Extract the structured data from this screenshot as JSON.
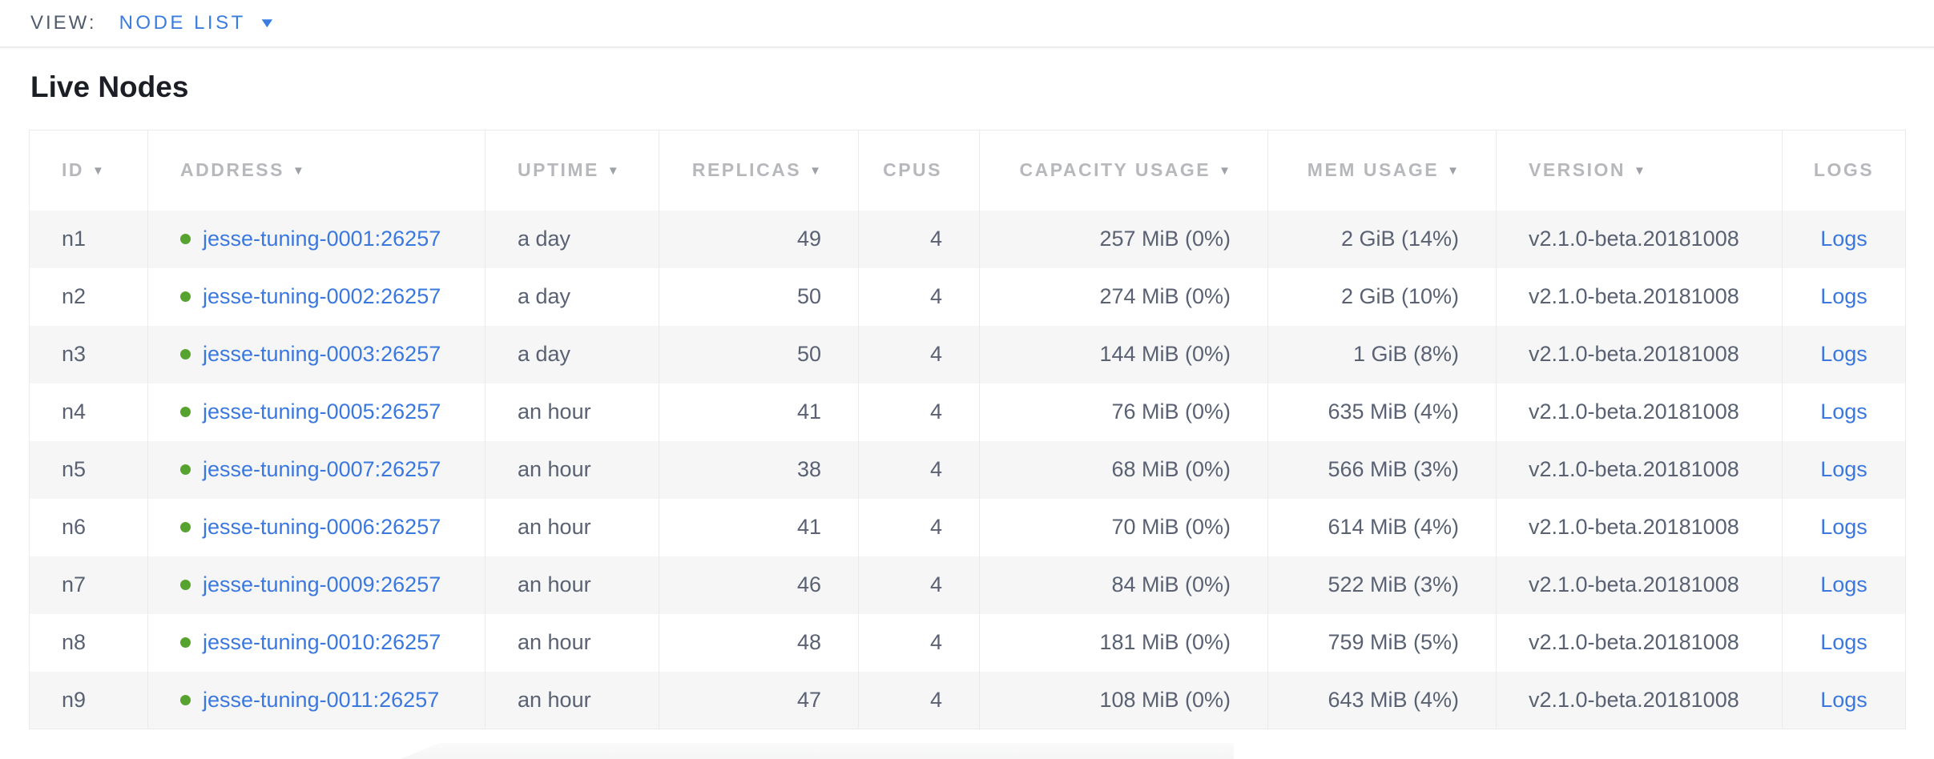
{
  "view_bar": {
    "label": "VIEW:",
    "selected": "NODE LIST",
    "dropdown_icon": "▼"
  },
  "page": {
    "title": "Live Nodes"
  },
  "table": {
    "sort_icon": "▼",
    "columns": [
      {
        "key": "id",
        "label": "ID",
        "sortable": true,
        "align": "left"
      },
      {
        "key": "address",
        "label": "ADDRESS",
        "sortable": true,
        "align": "left"
      },
      {
        "key": "uptime",
        "label": "UPTIME",
        "sortable": true,
        "align": "left"
      },
      {
        "key": "replicas",
        "label": "REPLICAS",
        "sortable": true,
        "align": "right"
      },
      {
        "key": "cpus",
        "label": "CPUS",
        "sortable": false,
        "align": "right"
      },
      {
        "key": "capacity",
        "label": "CAPACITY USAGE",
        "sortable": true,
        "align": "right"
      },
      {
        "key": "mem",
        "label": "MEM USAGE",
        "sortable": true,
        "align": "right"
      },
      {
        "key": "version",
        "label": "VERSION",
        "sortable": true,
        "align": "left"
      },
      {
        "key": "logs",
        "label": "LOGS",
        "sortable": false,
        "align": "center"
      }
    ],
    "rows": [
      {
        "id": "n1",
        "status": "live",
        "address": "jesse-tuning-0001:26257",
        "uptime": "a day",
        "replicas": "49",
        "cpus": "4",
        "capacity": "257 MiB (0%)",
        "mem": "2 GiB (14%)",
        "version": "v2.1.0-beta.20181008",
        "logs": "Logs"
      },
      {
        "id": "n2",
        "status": "live",
        "address": "jesse-tuning-0002:26257",
        "uptime": "a day",
        "replicas": "50",
        "cpus": "4",
        "capacity": "274 MiB (0%)",
        "mem": "2 GiB (10%)",
        "version": "v2.1.0-beta.20181008",
        "logs": "Logs"
      },
      {
        "id": "n3",
        "status": "live",
        "address": "jesse-tuning-0003:26257",
        "uptime": "a day",
        "replicas": "50",
        "cpus": "4",
        "capacity": "144 MiB (0%)",
        "mem": "1 GiB (8%)",
        "version": "v2.1.0-beta.20181008",
        "logs": "Logs"
      },
      {
        "id": "n4",
        "status": "live",
        "address": "jesse-tuning-0005:26257",
        "uptime": "an hour",
        "replicas": "41",
        "cpus": "4",
        "capacity": "76 MiB (0%)",
        "mem": "635 MiB (4%)",
        "version": "v2.1.0-beta.20181008",
        "logs": "Logs"
      },
      {
        "id": "n5",
        "status": "live",
        "address": "jesse-tuning-0007:26257",
        "uptime": "an hour",
        "replicas": "38",
        "cpus": "4",
        "capacity": "68 MiB (0%)",
        "mem": "566 MiB (3%)",
        "version": "v2.1.0-beta.20181008",
        "logs": "Logs"
      },
      {
        "id": "n6",
        "status": "live",
        "address": "jesse-tuning-0006:26257",
        "uptime": "an hour",
        "replicas": "41",
        "cpus": "4",
        "capacity": "70 MiB (0%)",
        "mem": "614 MiB (4%)",
        "version": "v2.1.0-beta.20181008",
        "logs": "Logs"
      },
      {
        "id": "n7",
        "status": "live",
        "address": "jesse-tuning-0009:26257",
        "uptime": "an hour",
        "replicas": "46",
        "cpus": "4",
        "capacity": "84 MiB (0%)",
        "mem": "522 MiB (3%)",
        "version": "v2.1.0-beta.20181008",
        "logs": "Logs"
      },
      {
        "id": "n8",
        "status": "live",
        "address": "jesse-tuning-0010:26257",
        "uptime": "an hour",
        "replicas": "48",
        "cpus": "4",
        "capacity": "181 MiB (0%)",
        "mem": "759 MiB (5%)",
        "version": "v2.1.0-beta.20181008",
        "logs": "Logs"
      },
      {
        "id": "n9",
        "status": "live",
        "address": "jesse-tuning-0011:26257",
        "uptime": "an hour",
        "replicas": "47",
        "cpus": "4",
        "capacity": "108 MiB (0%)",
        "mem": "643 MiB (4%)",
        "version": "v2.1.0-beta.20181008",
        "logs": "Logs"
      }
    ]
  },
  "colors": {
    "accent_blue": "#3a7ce0",
    "link_blue": "#3b78dd",
    "live_green": "#56a331",
    "header_gray": "#b6b8bc",
    "body_text_slate": "#596173",
    "row_alt_bg": "#f6f6f7",
    "border_gray": "#eaebec",
    "title_black": "#1b1e24"
  }
}
